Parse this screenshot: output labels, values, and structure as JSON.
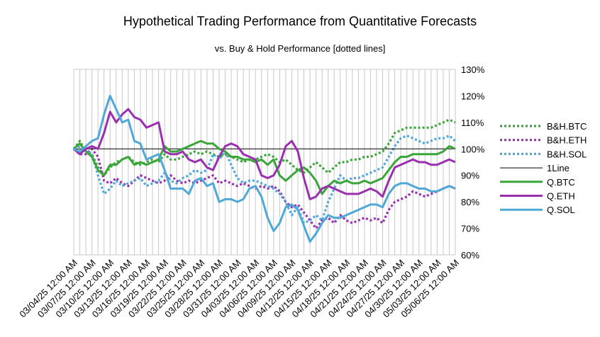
{
  "chart_data": {
    "type": "line",
    "title": "Hypothetical Trading Performance from Quantitative Forecasts",
    "subtitle": "vs. Buy & Hold Performance [dotted lines]",
    "y_axis": {
      "min": 60,
      "max": 130,
      "step": 5,
      "tick_labels": [
        "60%",
        "70%",
        "80%",
        "90%",
        "100%",
        "110%",
        "120%",
        "130%"
      ],
      "tick_values": [
        60,
        70,
        80,
        90,
        100,
        110,
        120,
        130
      ]
    },
    "x_axis": {
      "tick_labels": [
        "03/04/25 12:00 AM",
        "03/07/25 12:00 AM",
        "03/10/25 12:00 AM",
        "03/13/25 12:00 AM",
        "03/16/25 12:00 AM",
        "03/19/25 12:00 AM",
        "03/22/25 12:00 AM",
        "03/25/25 12:00 AM",
        "03/28/25 12:00 AM",
        "03/31/25 12:00 AM",
        "04/03/25 12:00 AM",
        "04/06/25 12:00 AM",
        "04/09/25 12:00 AM",
        "04/12/25 12:00 AM",
        "04/15/25 12:00 AM",
        "04/18/25 12:00 AM",
        "04/21/25 12:00 AM",
        "04/24/25 12:00 AM",
        "04/27/25 12:00 AM",
        "04/30/25 12:00 AM",
        "05/03/25 12:00 AM",
        "05/06/25 12:00 AM"
      ],
      "day_count": 64
    },
    "grid": "vertical-daily",
    "legend": "right",
    "series": [
      {
        "name": "B&H.BTC",
        "color": "#3aa63a",
        "style": "dotted",
        "values": [
          100,
          103,
          99,
          98,
          93,
          90,
          93,
          95,
          96,
          97,
          95,
          94,
          95,
          96,
          95,
          98,
          96,
          96,
          97,
          98,
          99,
          98,
          99,
          98,
          97,
          98,
          97,
          96,
          95,
          96,
          96,
          97,
          98,
          97,
          95,
          96,
          94,
          92,
          91,
          93,
          95,
          93,
          91,
          93,
          95,
          95,
          96,
          96,
          97,
          97,
          98,
          99,
          102,
          106,
          107,
          108,
          108,
          108,
          108,
          108,
          109,
          110,
          111,
          110
        ]
      },
      {
        "name": "B&H.ETH",
        "color": "#9a2fb0",
        "style": "dotted",
        "values": [
          100,
          98,
          98,
          100,
          97,
          88,
          87,
          89,
          87,
          86,
          88,
          90,
          89,
          88,
          87,
          88,
          90,
          88,
          87,
          88,
          87,
          88,
          89,
          90,
          87,
          88,
          87,
          86,
          87,
          86,
          85,
          86,
          85,
          86,
          84,
          80,
          78,
          79,
          76,
          73,
          70,
          73,
          74,
          72,
          75,
          73,
          72,
          73,
          74,
          73,
          74,
          72,
          77,
          80,
          81,
          82,
          84,
          83,
          82,
          83,
          84,
          85,
          86,
          85
        ]
      },
      {
        "name": "B&H.SOL",
        "color": "#4fa8d8",
        "style": "dotted",
        "values": [
          100,
          101,
          100,
          98,
          90,
          83,
          85,
          88,
          86,
          87,
          88,
          89,
          86,
          87,
          88,
          91,
          88,
          87,
          89,
          90,
          92,
          91,
          92,
          98,
          96,
          99,
          94,
          89,
          87,
          88,
          88,
          87,
          86,
          85,
          83,
          80,
          75,
          78,
          72,
          73,
          75,
          73,
          80,
          85,
          90,
          88,
          89,
          89,
          90,
          91,
          92,
          93,
          97,
          101,
          104,
          105,
          104,
          103,
          102,
          103,
          104,
          104,
          105,
          103
        ]
      },
      {
        "name": "1Line",
        "color": "#000000",
        "style": "thin",
        "values": [
          100,
          100,
          100,
          100,
          100,
          100,
          100,
          100,
          100,
          100,
          100,
          100,
          100,
          100,
          100,
          100,
          100,
          100,
          100,
          100,
          100,
          100,
          100,
          100,
          100,
          100,
          100,
          100,
          100,
          100,
          100,
          100,
          100,
          100,
          100,
          100,
          100,
          100,
          100,
          100,
          100,
          100,
          100,
          100,
          100,
          100,
          100,
          100,
          100,
          100,
          100,
          100,
          100,
          100,
          100,
          100,
          100,
          100,
          100,
          100,
          100,
          100,
          100,
          100
        ]
      },
      {
        "name": "Q.BTC",
        "color": "#3aa63a",
        "style": "solid",
        "values": [
          100,
          102,
          99,
          97,
          92,
          90,
          94,
          94,
          96,
          97,
          94,
          95,
          94,
          95,
          96,
          101,
          99,
          99,
          100,
          101,
          102,
          103,
          102,
          102,
          100,
          99,
          97,
          97,
          96,
          96,
          95,
          96,
          94,
          96,
          90,
          88,
          90,
          92,
          93,
          91,
          88,
          83,
          86,
          88,
          87,
          88,
          87,
          87,
          88,
          87,
          88,
          89,
          92,
          95,
          97,
          97,
          98,
          98,
          98,
          98,
          98,
          99,
          101,
          100
        ]
      },
      {
        "name": "Q.ETH",
        "color": "#9a2fb0",
        "style": "solid",
        "values": [
          100,
          98,
          100,
          101,
          100,
          106,
          114,
          110,
          113,
          115,
          112,
          111,
          108,
          109,
          110,
          99,
          98,
          98,
          99,
          96,
          95,
          96,
          93,
          92,
          97,
          101,
          102,
          101,
          98,
          97,
          96,
          90,
          89,
          90,
          94,
          101,
          103,
          99,
          89,
          81,
          82,
          85,
          86,
          85,
          84,
          83,
          83,
          83,
          84,
          85,
          84,
          82,
          88,
          93,
          94,
          95,
          96,
          95,
          95,
          94,
          94,
          95,
          96,
          95
        ]
      },
      {
        "name": "Q.SOL",
        "color": "#4fa8d8",
        "style": "solid",
        "values": [
          100,
          99,
          101,
          103,
          104,
          113,
          120,
          115,
          110,
          111,
          103,
          102,
          96,
          97,
          98,
          92,
          85,
          85,
          85,
          83,
          88,
          89,
          86,
          87,
          80,
          81,
          81,
          80,
          81,
          85,
          86,
          82,
          74,
          69,
          72,
          78,
          79,
          77,
          71,
          65,
          68,
          72,
          75,
          74,
          74,
          75,
          76,
          77,
          78,
          79,
          79,
          78,
          83,
          86,
          87,
          87,
          86,
          85,
          85,
          84,
          84,
          85,
          86,
          85
        ]
      }
    ]
  }
}
